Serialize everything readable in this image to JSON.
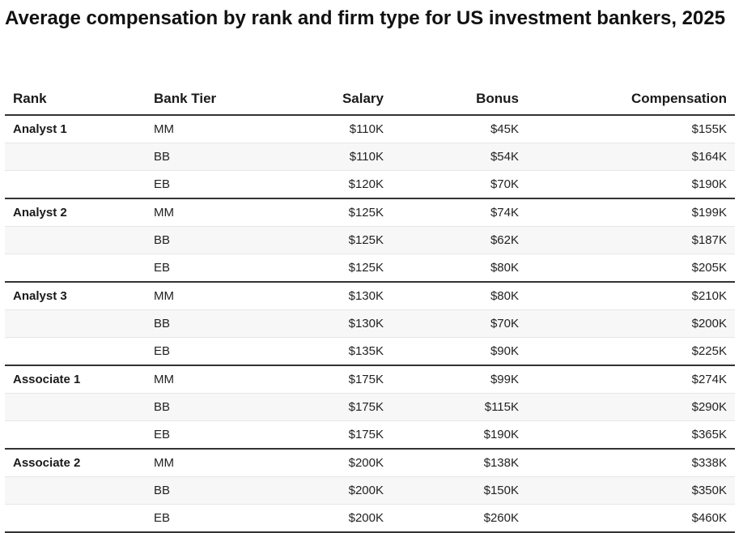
{
  "title": "Average compensation by rank and firm type for US investment bankers, 2025",
  "chart_data": {
    "type": "table",
    "title": "Average compensation by rank and firm type for US investment bankers, 2025",
    "columns": [
      "Rank",
      "Bank Tier",
      "Salary",
      "Bonus",
      "Compensation"
    ],
    "rows": [
      [
        "Analyst 1",
        "MM",
        "$110K",
        "$45K",
        "$155K"
      ],
      [
        "",
        "BB",
        "$110K",
        "$54K",
        "$164K"
      ],
      [
        "",
        "EB",
        "$120K",
        "$70K",
        "$190K"
      ],
      [
        "Analyst 2",
        "MM",
        "$125K",
        "$74K",
        "$199K"
      ],
      [
        "",
        "BB",
        "$125K",
        "$62K",
        "$187K"
      ],
      [
        "",
        "EB",
        "$125K",
        "$80K",
        "$205K"
      ],
      [
        "Analyst 3",
        "MM",
        "$130K",
        "$80K",
        "$210K"
      ],
      [
        "",
        "BB",
        "$130K",
        "$70K",
        "$200K"
      ],
      [
        "",
        "EB",
        "$135K",
        "$90K",
        "$225K"
      ],
      [
        "Associate 1",
        "MM",
        "$175K",
        "$99K",
        "$274K"
      ],
      [
        "",
        "BB",
        "$175K",
        "$115K",
        "$290K"
      ],
      [
        "",
        "EB",
        "$175K",
        "$190K",
        "$365K"
      ],
      [
        "Associate 2",
        "MM",
        "$200K",
        "$138K",
        "$338K"
      ],
      [
        "",
        "BB",
        "$200K",
        "$150K",
        "$350K"
      ],
      [
        "",
        "EB",
        "$200K",
        "$260K",
        "$460K"
      ]
    ]
  }
}
